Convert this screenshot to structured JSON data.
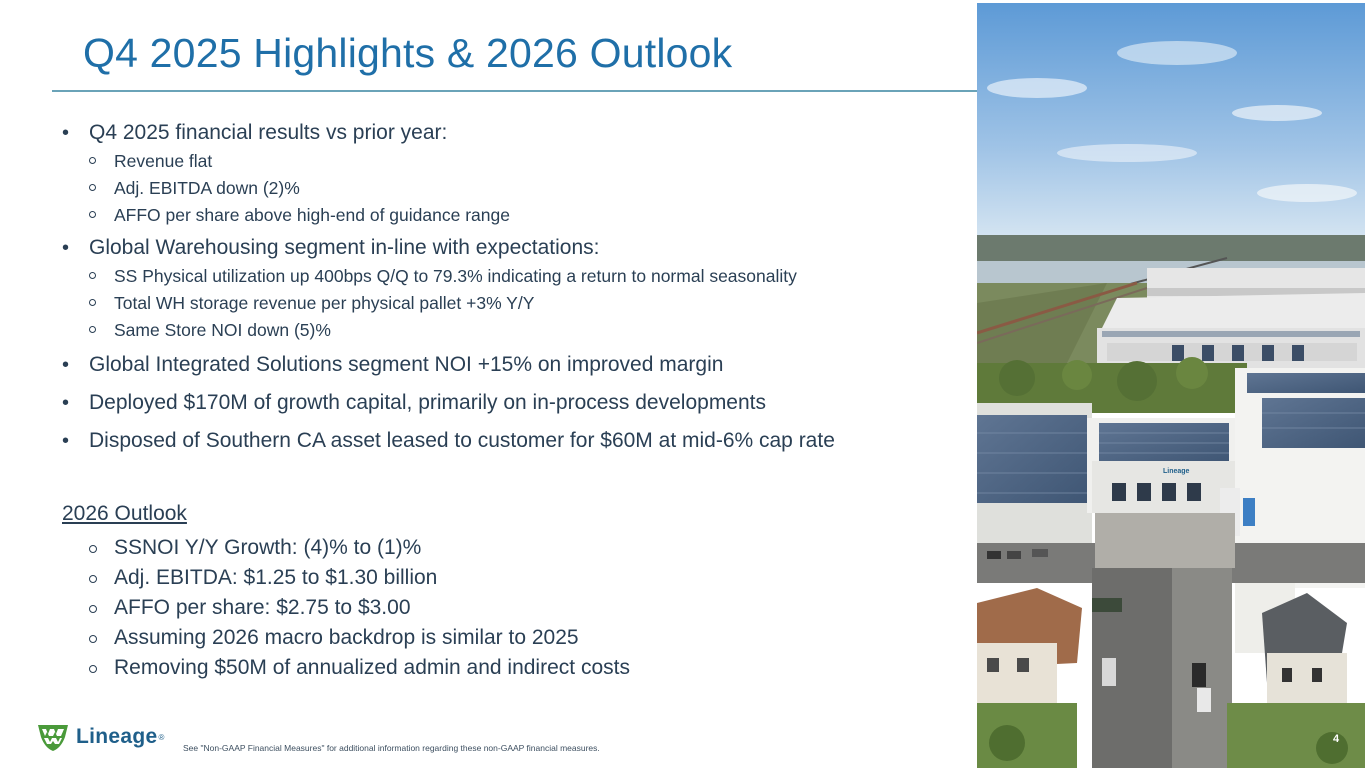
{
  "slide": {
    "title": "Q4 2025 Highlights & 2026 Outlook",
    "page_number": "4"
  },
  "highlights": [
    {
      "text": "Q4 2025 financial results vs prior year:",
      "subs": [
        "Revenue flat",
        "Adj. EBITDA down (2)%",
        "AFFO per share above high-end of guidance range"
      ]
    },
    {
      "text": "Global Warehousing segment in-line with expectations:",
      "subs": [
        "SS Physical utilization up 400bps Q/Q to 79.3% indicating a return to normal seasonality",
        "Total WH storage revenue per physical pallet +3% Y/Y",
        "Same Store NOI down (5)%"
      ]
    },
    {
      "text": "Global Integrated Solutions segment NOI +15% on improved margin"
    },
    {
      "text": "Deployed $170M of growth capital, primarily on in-process developments"
    },
    {
      "text": "Disposed of Southern CA asset leased to customer for $60M at mid-6% cap rate"
    }
  ],
  "outlook": {
    "heading": "2026 Outlook",
    "items": [
      "SSNOI Y/Y Growth: (4)% to (1)%",
      "Adj. EBITDA: $1.25 to $1.30 billion",
      "AFFO per share: $2.75 to $3.00",
      "Assuming 2026 macro backdrop is similar to 2025",
      "Removing $50M of annualized admin and indirect costs"
    ]
  },
  "footer": {
    "logo_text": "Lineage",
    "logo_mark": "®",
    "footnote": "See \"Non-GAAP Financial Measures\" for additional information regarding these non-GAAP financial measures."
  },
  "photo": {
    "building_sign": "Lineage"
  },
  "colors": {
    "title": "#1f6fa8",
    "rule": "#6aa3b8",
    "body_text": "#2a3f54",
    "logo_green": "#4a9a3a",
    "logo_blue": "#1f5f8a"
  }
}
